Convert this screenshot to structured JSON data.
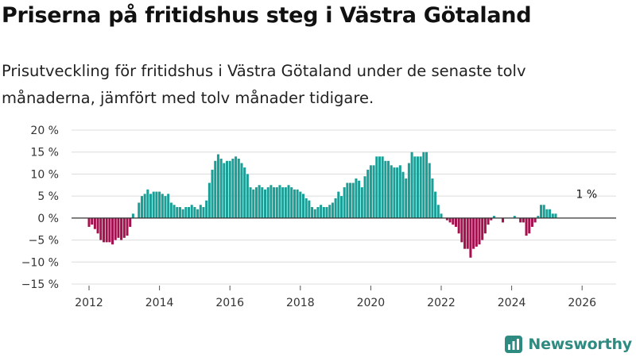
{
  "header": {
    "title": "Priserna på fritidshus steg i Västra Götaland",
    "subtitle": "Prisutveckling för fritidshus i Västra Götaland under de senaste tolv månaderna, jämfört med tolv månader tidigare."
  },
  "brand": {
    "name": "Newsworthy",
    "icon": "newsworthy-chart-icon"
  },
  "colors": {
    "positive": "#1a9e96",
    "negative": "#a3124f",
    "grid": "#dcdcdc",
    "zero_line": "#333333",
    "brand": "#2e8b81"
  },
  "chart_data": {
    "type": "bar",
    "x_unit": "month",
    "x_start": "2012-01",
    "x_end": "2026-02",
    "ylim": [
      -15,
      20
    ],
    "y_ticks": [
      -15,
      -10,
      -5,
      0,
      5,
      10,
      15,
      20
    ],
    "y_tick_labels": [
      "−15 %",
      "−10 %",
      "−5 %",
      "0 %",
      "5 %",
      "10 %",
      "15 %",
      "20 %"
    ],
    "x_ticks": [
      2012,
      2014,
      2016,
      2018,
      2020,
      2022,
      2024,
      2026
    ],
    "x_tick_labels": [
      "2012",
      "2014",
      "2016",
      "2018",
      "2020",
      "2022",
      "2024",
      "2026"
    ],
    "grid": "horizontal",
    "annotation": {
      "text": "1 %",
      "x": "2026-02",
      "y": 1
    },
    "values": [
      -2,
      -1.5,
      -2.5,
      -3.5,
      -5,
      -5.5,
      -5.5,
      -5.5,
      -6,
      -5,
      -4.5,
      -5,
      -4.5,
      -4,
      -2,
      1,
      0,
      3.5,
      5,
      5.5,
      6.5,
      5.5,
      6,
      6,
      6,
      5.5,
      5,
      5.5,
      3.5,
      3,
      2.5,
      2.5,
      2,
      2.5,
      2.5,
      3,
      2.5,
      2,
      3,
      2.5,
      4,
      8,
      11,
      13,
      14.5,
      13.5,
      12.5,
      13,
      13,
      13.5,
      14,
      13.5,
      12.5,
      11.5,
      10,
      7,
      6.5,
      7,
      7.5,
      7,
      6.5,
      7,
      7.5,
      7,
      7,
      7.5,
      7,
      7,
      7.5,
      7,
      6.5,
      6.5,
      6,
      5.5,
      4.5,
      4,
      2.5,
      2,
      2.5,
      3,
      2.5,
      2.5,
      3,
      3.5,
      4.5,
      6,
      5,
      7,
      8,
      8,
      8,
      9,
      8.5,
      7,
      9.5,
      11,
      12,
      12,
      14,
      14,
      14,
      13,
      13,
      12,
      11.5,
      11.5,
      12,
      10.5,
      9,
      12.5,
      15,
      14,
      14,
      14,
      15,
      15,
      12.5,
      9,
      6,
      3,
      1,
      0,
      -0.5,
      -1,
      -1.5,
      -2,
      -3.5,
      -5.5,
      -7,
      -7,
      -9,
      -7,
      -6.5,
      -6,
      -5,
      -3.5,
      -1.5,
      -0.5,
      0.5,
      0,
      0,
      -1,
      0,
      0,
      0,
      0.5,
      0,
      -1,
      -1,
      -4,
      -3.5,
      -2,
      -1,
      0.5,
      3,
      3,
      2,
      2,
      1,
      1
    ]
  }
}
